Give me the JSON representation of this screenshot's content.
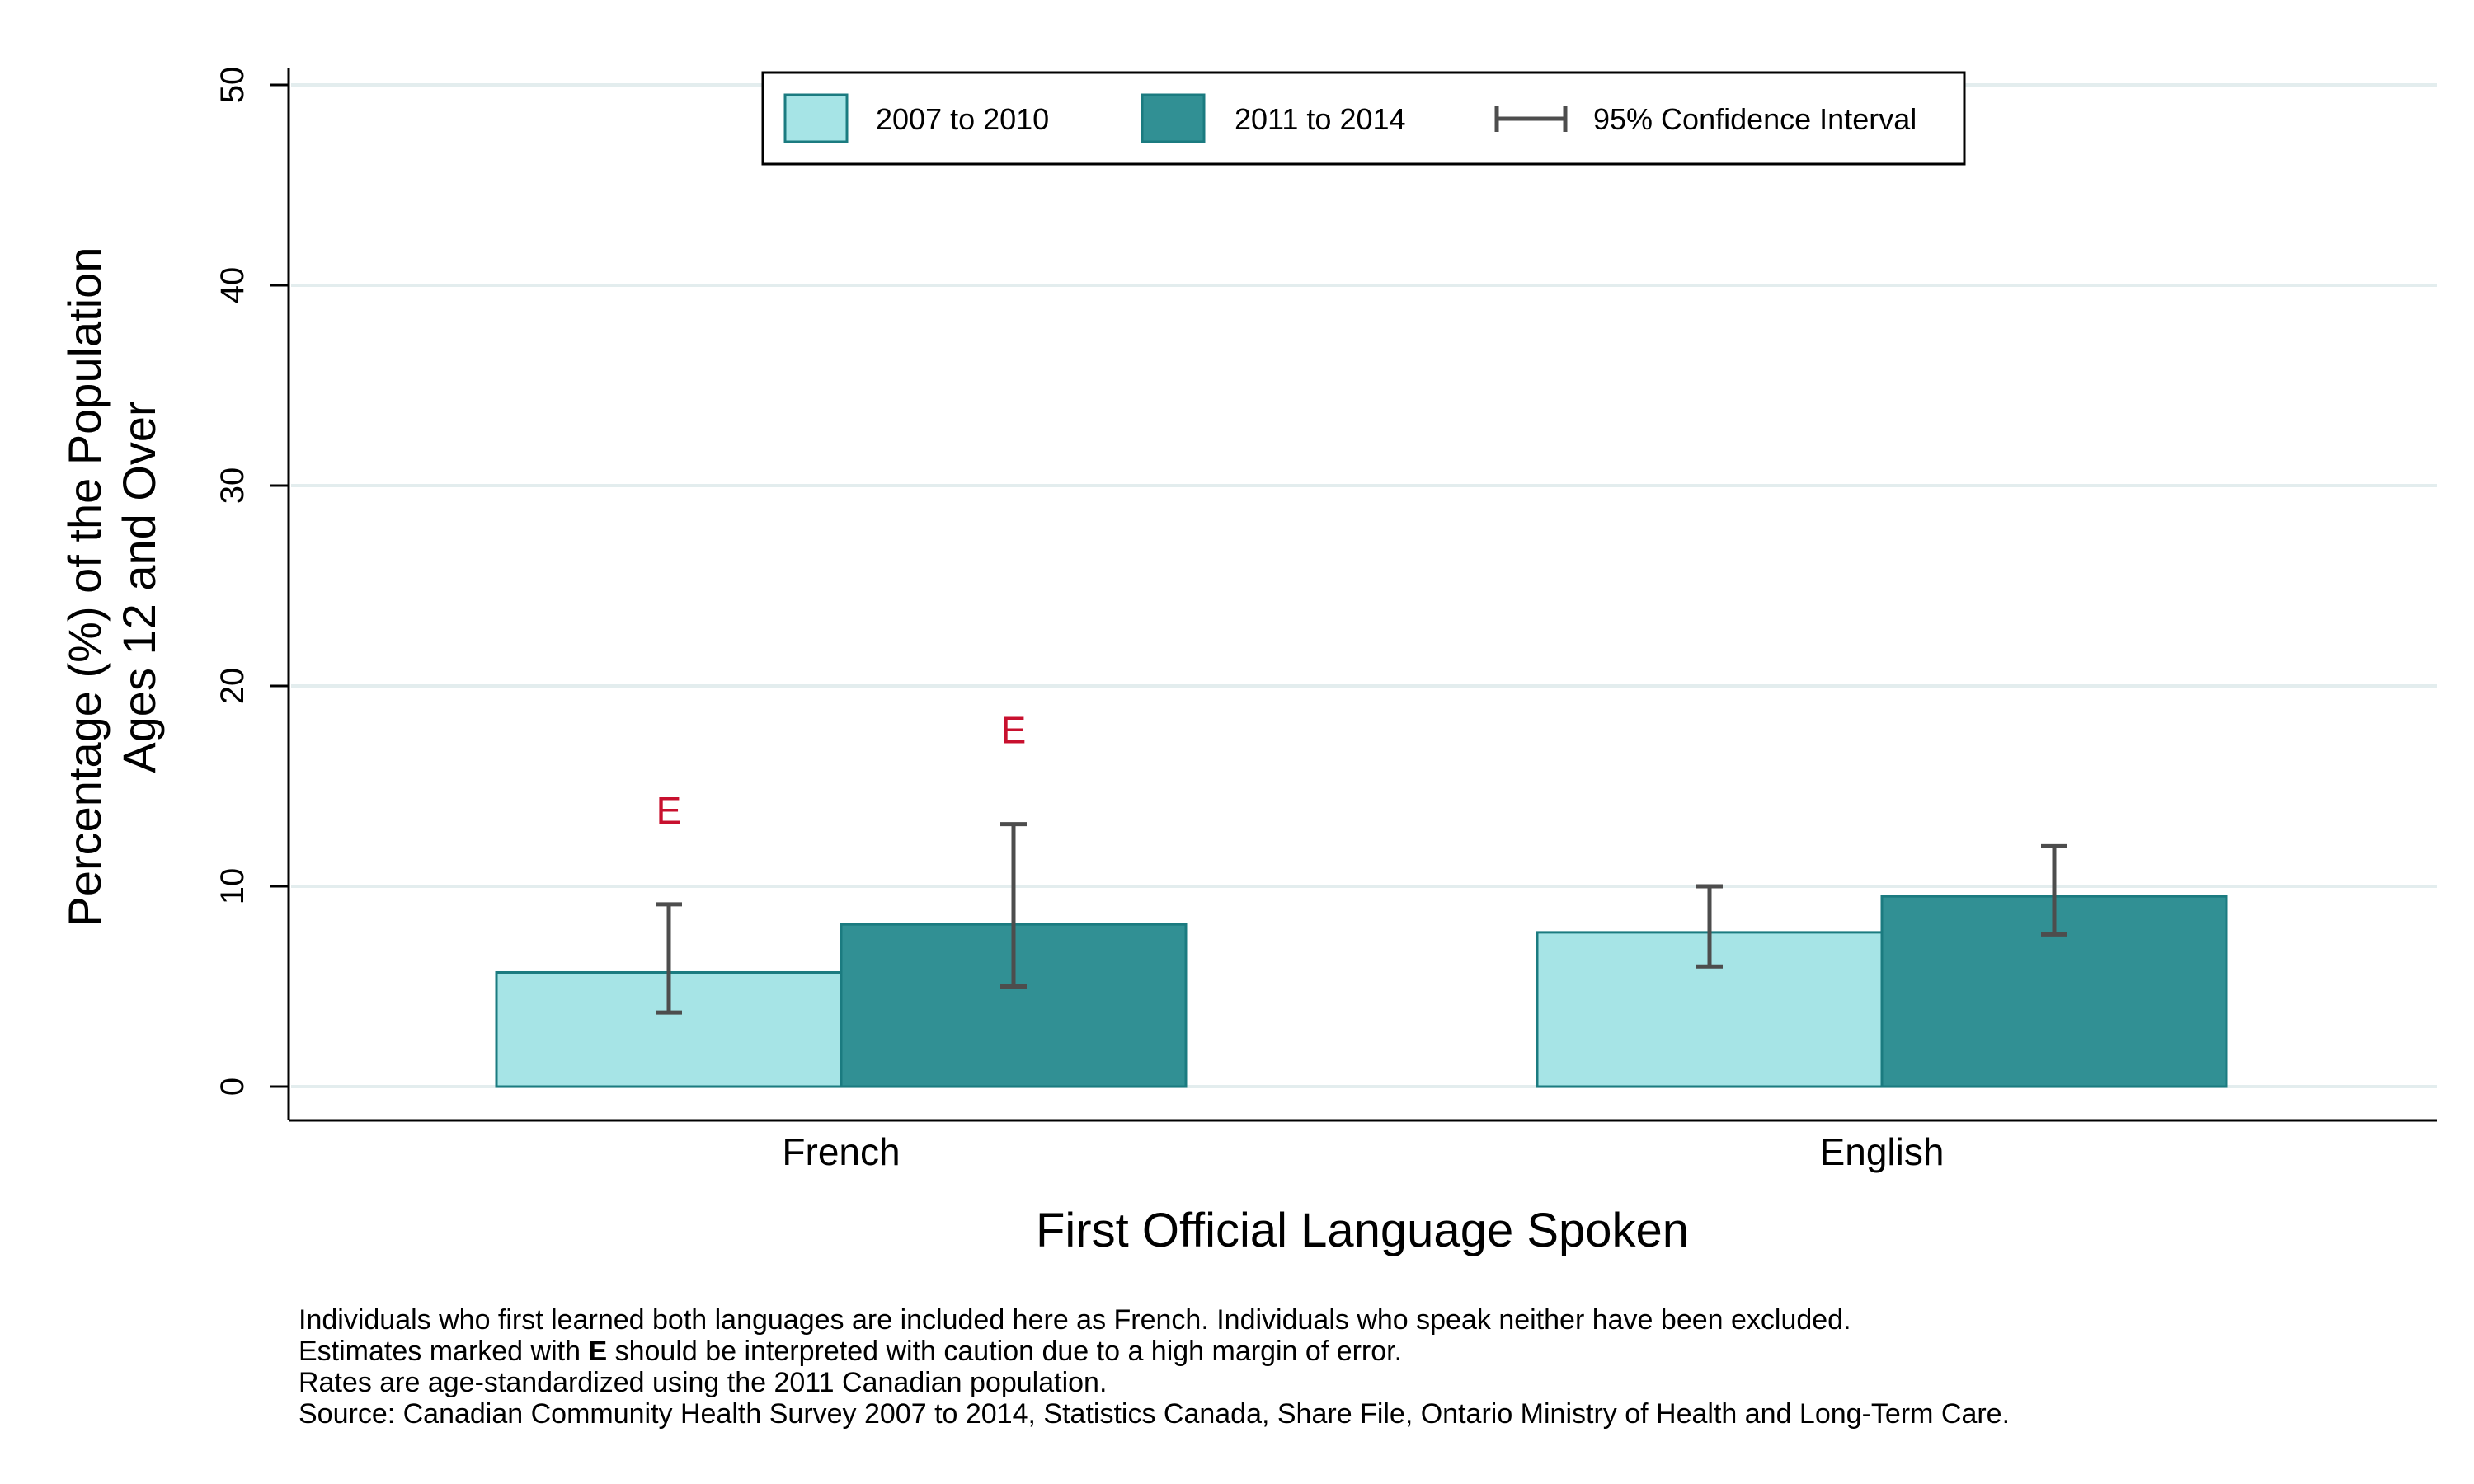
{
  "chart_data": {
    "type": "bar",
    "title": "",
    "xlabel": "First Official Language Spoken",
    "ylabel": "Percentage (%) of the Population",
    "ylabel_line2": "Ages 12 and Over",
    "ylim": [
      0,
      50
    ],
    "yticks": [
      0,
      10,
      20,
      30,
      40,
      50
    ],
    "grid": true,
    "legend_position": "top",
    "categories": [
      "French",
      "English"
    ],
    "series": [
      {
        "name": "2007 to 2010",
        "color": "#a6e4e6",
        "values": [
          5.7,
          7.7
        ],
        "ci_low": [
          3.7,
          6.0
        ],
        "ci_high": [
          9.1,
          10.0
        ],
        "flags": [
          "E",
          ""
        ]
      },
      {
        "name": "2011 to 2014",
        "color": "#319094",
        "values": [
          8.1,
          9.5
        ],
        "ci_low": [
          5.0,
          7.6
        ],
        "ci_high": [
          13.1,
          12.0
        ],
        "flags": [
          "E",
          ""
        ]
      }
    ],
    "ci_legend_label": "95% Confidence Interval",
    "flag_color": "#c8102e",
    "bar_edge_color": "#1b7b80",
    "ci_color": "#4d4d4d",
    "grid_color": "#e3edee"
  },
  "notes": {
    "line1": "Individuals who first learned both languages are included here as French.  Individuals who speak neither have been excluded.",
    "line2_before": "Estimates marked with ",
    "line2_flag": "E",
    "line2_after": " should be interpreted with caution due to a high margin of error.",
    "line3": "Rates are age-standardized using the 2011 Canadian population.",
    "line4": "Source: Canadian Community Health Survey 2007 to 2014, Statistics Canada, Share File, Ontario Ministry of Health and Long-Term Care."
  }
}
